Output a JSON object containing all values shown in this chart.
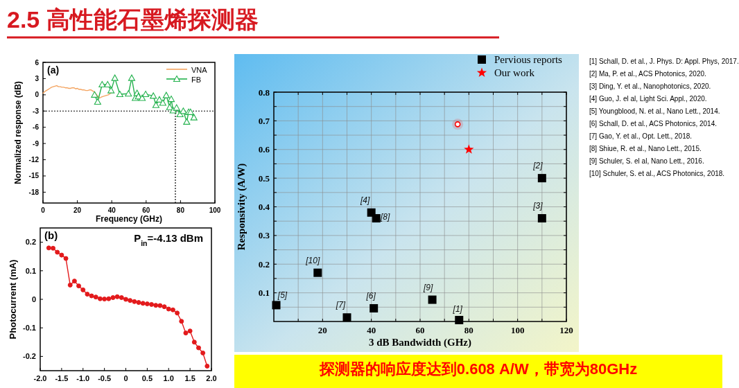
{
  "chart_data": [
    {
      "type": "line",
      "title": "2.5 高性能石墨烯探测器",
      "xlabel": "Frequency (GHz)",
      "ylabel": "Normalized response (dB)",
      "xlim": [
        0,
        100
      ],
      "xticks": [
        0,
        20,
        40,
        60,
        80,
        100
      ],
      "ylim": [
        -20,
        6
      ],
      "yticks": [
        -18,
        -15,
        -12,
        -9,
        -6,
        -3,
        0,
        3,
        6
      ],
      "legend": "top right",
      "annotations": [
        "(a)"
      ],
      "ref_lines": [
        {
          "axis": "y",
          "value": -3,
          "color": "#000000",
          "line_style": "dotted"
        },
        {
          "axis": "x",
          "value": 77,
          "color": "#000000",
          "line_style": "dotted"
        }
      ],
      "series": [
        {
          "name": "VNA",
          "color": "#f4a460",
          "marker": "none",
          "x": [
            0,
            1,
            2,
            3,
            4,
            5,
            6,
            7,
            8,
            9,
            10,
            11,
            12,
            13,
            14,
            15,
            16,
            17,
            18,
            19,
            20,
            21,
            22,
            23,
            24,
            25,
            26,
            27,
            28,
            29,
            30,
            31,
            32,
            33,
            34,
            35,
            36,
            37,
            38,
            39,
            40
          ],
          "values": [
            0.3,
            0.6,
            0.8,
            1.0,
            1.2,
            1.4,
            1.5,
            1.6,
            1.7,
            1.5,
            1.5,
            1.4,
            1.4,
            1.3,
            1.3,
            1.2,
            1.2,
            1.3,
            1.3,
            1.1,
            1.2,
            1.0,
            1.0,
            0.9,
            0.9,
            0.8,
            0.8,
            0.9,
            0.9,
            0.7,
            0.5,
            0.1,
            -0.3,
            -0.6,
            -0.4,
            -0.3,
            -0.2,
            -0.1,
            0.0,
            0.2,
            0.4
          ]
        },
        {
          "name": "FB",
          "color": "#22b14c",
          "marker": "triangle",
          "x": [
            30,
            31.8,
            34.4,
            37.6,
            39.6,
            41.8,
            44.7,
            49.7,
            51.6,
            53.7,
            54.7,
            55.5,
            57.7,
            59.7,
            64.2,
            65.7,
            67.7,
            69.7,
            71.7,
            73.7,
            74.6,
            75.7,
            77.7,
            79.7,
            81.6,
            83.6,
            84.7,
            85.8,
            87.8
          ],
          "values": [
            0,
            -1.3,
            1.9,
            1.9,
            0.8,
            3.1,
            0.1,
            0.2,
            3.1,
            -0.6,
            0.3,
            -0.3,
            -0.6,
            0.1,
            -0.2,
            -1.9,
            -0.9,
            -1.5,
            -0.1,
            -2.3,
            -0.8,
            -2.9,
            -2.4,
            -3.6,
            -3.0,
            -5.0,
            -3.2,
            -3.2,
            -4.2
          ]
        }
      ]
    },
    {
      "type": "line",
      "ylabel": "Photocurrent (mA)",
      "xlim": [
        -2,
        2
      ],
      "xticks": [
        {
          "value": -2,
          "label": "-2.0"
        },
        {
          "value": -1.5,
          "label": "-1.5"
        },
        {
          "value": -1,
          "label": "-1.0"
        },
        {
          "value": -0.5,
          "label": "-0.5"
        },
        0,
        {
          "value": 0.5,
          "label": "0.5"
        },
        {
          "value": 1,
          "label": "1.0"
        },
        {
          "value": 1.5,
          "label": "1.5"
        },
        {
          "value": 2,
          "label": "2.0"
        }
      ],
      "ylim": [
        -0.25,
        0.25
      ],
      "yticks": [
        -0.2,
        -0.1,
        0,
        0.1,
        0.2
      ],
      "annotations": [
        "(b)",
        "P$_{in}$=-4.13 dBm"
      ],
      "series": [
        {
          "color": "#e31a1c",
          "marker": "circle",
          "x": [
            -1.8,
            -1.7,
            -1.6,
            -1.5,
            -1.4,
            -1.3,
            -1.2,
            -1.1,
            -1.0,
            -0.9,
            -0.8,
            -0.7,
            -0.6,
            -0.5,
            -0.4,
            -0.3,
            -0.2,
            -0.1,
            0,
            0.1,
            0.2,
            0.3,
            0.4,
            0.5,
            0.6,
            0.7,
            0.8,
            0.9,
            1.0,
            1.1,
            1.2,
            1.3,
            1.4,
            1.5,
            1.6,
            1.7,
            1.8,
            1.9
          ],
          "values": [
            0.18,
            0.179,
            0.165,
            0.155,
            0.143,
            0.05,
            0.064,
            0.047,
            0.033,
            0.018,
            0.012,
            0.008,
            0.002,
            0.001,
            0.002,
            0.006,
            0.009,
            0.006,
            0.0,
            -0.004,
            -0.008,
            -0.011,
            -0.014,
            -0.016,
            -0.018,
            -0.021,
            -0.022,
            -0.026,
            -0.034,
            -0.037,
            -0.048,
            -0.077,
            -0.118,
            -0.111,
            -0.15,
            -0.17,
            -0.188,
            -0.234
          ]
        }
      ]
    },
    {
      "type": "scatter",
      "xlabel": "3 dB Bandwidth (GHz)",
      "ylabel": "Responsivity (A/W)",
      "xlim": [
        0,
        120
      ],
      "ylim": [
        0,
        0.8
      ],
      "grid": true,
      "legend": "top",
      "xticks": [
        {
          "value": 10,
          "label": null
        },
        20,
        {
          "value": 30,
          "label": null
        },
        40,
        {
          "value": 50,
          "label": null
        },
        60,
        {
          "value": 70,
          "label": null
        },
        80,
        {
          "value": 90,
          "label": null
        },
        100,
        {
          "value": 110,
          "label": null
        },
        120
      ],
      "yticks": [
        {
          "value": 0.05,
          "label": null
        },
        0.1,
        {
          "value": 0.15,
          "label": null
        },
        0.2,
        {
          "value": 0.25,
          "label": null
        },
        0.3,
        {
          "value": 0.35,
          "label": null
        },
        0.4,
        {
          "value": 0.45,
          "label": null
        },
        0.5,
        {
          "value": 0.55,
          "label": null
        },
        0.6,
        {
          "value": 0.65,
          "label": null
        },
        0.7,
        {
          "value": 0.75,
          "label": null
        },
        0.8
      ],
      "series": [
        {
          "name": "Pervious reports",
          "color": "#000000",
          "marker": "square",
          "x": [
            76,
            110,
            110,
            40,
            1,
            41,
            30,
            42,
            65,
            18
          ],
          "values": [
            0.005,
            0.5,
            0.36,
            0.38,
            0.057,
            0.046,
            0.014,
            0.36,
            0.076,
            0.17
          ]
        },
        {
          "name": "Our work",
          "color": "#ff0000",
          "marker": "star",
          "x": [
            80
          ],
          "values": [
            0.6
          ]
        },
        {
          "color": "#ff0000",
          "marker": "circle",
          "x": [
            75.4
          ],
          "values": [
            0.688
          ]
        }
      ],
      "annotations": [
        {
          "text": "[1]",
          "x": 76,
          "y": 0.005
        },
        {
          "text": "[2]",
          "x": 110,
          "y": 0.5
        },
        {
          "text": "[3]",
          "x": 110,
          "y": 0.36
        },
        {
          "text": "[4]",
          "x": 40,
          "y": 0.38
        },
        {
          "text": "[5]",
          "x": 1,
          "y": 0.057
        },
        {
          "text": "[6]",
          "x": 41,
          "y": 0.046
        },
        {
          "text": "[7]",
          "x": 30,
          "y": 0.014
        },
        {
          "text": "[8]",
          "x": 42,
          "y": 0.36
        },
        {
          "text": "[9]",
          "x": 65,
          "y": 0.076
        },
        {
          "text": "[10]",
          "x": 18,
          "y": 0.17
        },
        "[1] Schall, D. et al., J. Phys. D: Appl. Phys, 2017.",
        "[2] Ma, P. et al., ACS Photonics, 2020.",
        "[3] Ding, Y. et al., Nanophotonics, 2020.",
        "[4] Guo, J. el al, Light Sci. Appl., 2020.",
        "[5] Youngblood, N. et al., Nano Lett., 2014.",
        "[6] Schall, D. et al., ACS Photonics, 2014.",
        "[7] Gao, Y. et al., Opt. Lett., 2018.",
        "[8] Shiue, R. et al., Nano Lett., 2015.",
        "[9] Schuler, S. el al, Nano Lett., 2016.",
        "[10] Schuler, S.  et al., ACS Photonics, 2018.",
        "探测器的响应度达到0.608 A/W，带宽为80GHz"
      ]
    }
  ]
}
